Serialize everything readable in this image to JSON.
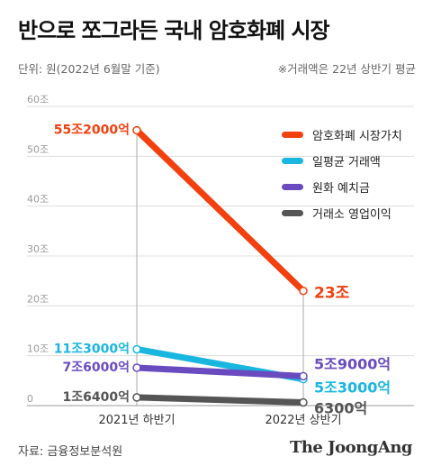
{
  "title": "반으로 쪼그라든 국내 암호화폐 시장",
  "unit_note": "단위: 원(2022년 6월말 기준)",
  "avg_note": "※거래액은 22년 상반기 평균",
  "source": "자료: 금융정보분석원",
  "logo": "The JoongAng",
  "chart_data": {
    "type": "line",
    "categories": [
      "2021년 하반기",
      "2022년 상반기"
    ],
    "ylim": [
      0,
      60
    ],
    "yticks": [
      0,
      10,
      20,
      30,
      40,
      50,
      60
    ],
    "ytick_labels": [
      "0",
      "10조",
      "20조",
      "30조",
      "40조",
      "50조",
      "60조"
    ],
    "legend_position": "top-right",
    "series": [
      {
        "name": "암호화폐 시장가치",
        "color": "#f2400f",
        "values": [
          55.2,
          23
        ],
        "labels": [
          "55조2000억",
          "23조"
        ],
        "label_colors": [
          "#f2400f",
          "#f2400f"
        ]
      },
      {
        "name": "일평균 거래액",
        "color": "#19b6e0",
        "values": [
          11.3,
          5.3
        ],
        "labels": [
          "11조3000억",
          "5조3000억"
        ],
        "label_colors": [
          "#19b6e0",
          "#19b6e0"
        ]
      },
      {
        "name": "원화 예치금",
        "color": "#6a4bbf",
        "values": [
          7.6,
          5.9
        ],
        "labels": [
          "7조6000억",
          "5조9000억"
        ],
        "label_colors": [
          "#6a4bbf",
          "#6a4bbf"
        ]
      },
      {
        "name": "거래소 영업이익",
        "color": "#555555",
        "values": [
          1.64,
          0.63
        ],
        "labels": [
          "1조6400억",
          "6300억"
        ],
        "label_colors": [
          "#555555",
          "#555555"
        ]
      }
    ]
  }
}
